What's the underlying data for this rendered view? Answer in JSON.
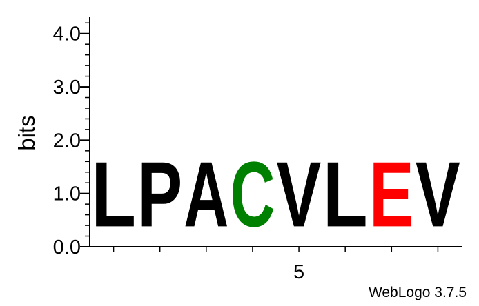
{
  "chart_data": {
    "type": "sequence_logo",
    "ylabel": "bits",
    "ylim": [
      0,
      4.32
    ],
    "yticks": [
      {
        "value": 0,
        "label": "0.0"
      },
      {
        "value": 1,
        "label": "1.0"
      },
      {
        "value": 2,
        "label": "2.0"
      },
      {
        "value": 3,
        "label": "3.0"
      },
      {
        "value": 4,
        "label": "4.0"
      }
    ],
    "x_tick_labels": [
      {
        "position": 5,
        "label": "5"
      }
    ],
    "positions": [
      1,
      2,
      3,
      4,
      5,
      6,
      7,
      8
    ],
    "sequence": [
      {
        "position": 1,
        "letter": "L",
        "bits": 1.95,
        "color": "#000000"
      },
      {
        "position": 2,
        "letter": "P",
        "bits": 1.95,
        "color": "#000000"
      },
      {
        "position": 3,
        "letter": "A",
        "bits": 1.95,
        "color": "#000000"
      },
      {
        "position": 4,
        "letter": "C",
        "bits": 1.95,
        "color": "#008000"
      },
      {
        "position": 5,
        "letter": "V",
        "bits": 1.95,
        "color": "#000000"
      },
      {
        "position": 6,
        "letter": "L",
        "bits": 1.95,
        "color": "#000000"
      },
      {
        "position": 7,
        "letter": "E",
        "bits": 1.95,
        "color": "#ff0000"
      },
      {
        "position": 8,
        "letter": "V",
        "bits": 1.95,
        "color": "#000000"
      }
    ]
  },
  "credit": "WebLogo 3.7.5"
}
